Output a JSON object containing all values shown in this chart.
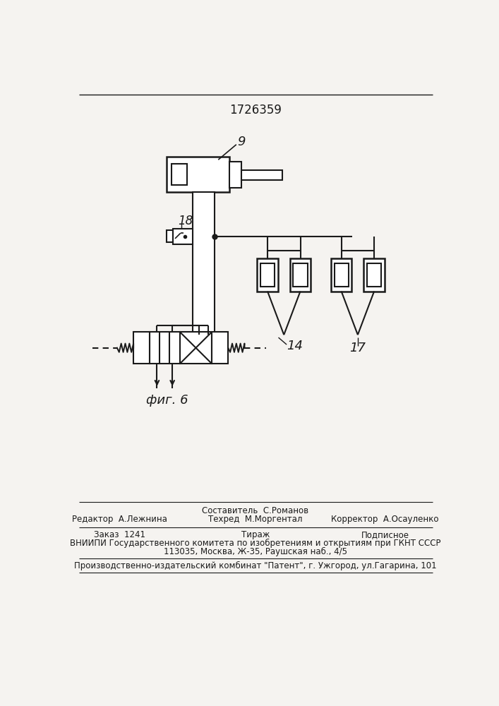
{
  "title": "1726359",
  "bg_color": "#f5f3f0",
  "line_color": "#1a1a1a",
  "label_9": "9",
  "label_18": "18",
  "label_14": "14",
  "label_17": "17",
  "fig_label": "фиг. 6",
  "footer_line1_center": "Составитель  С.Романов",
  "footer_line1_left": "Редактор  А.Лежнина",
  "footer_line1_right": "Корректор  А.Осауленко",
  "footer_line2_center": "Техред  М.Моргентал",
  "footer_line3_left": "Заказ  1241",
  "footer_line3_center": "Тираж",
  "footer_line3_right": "Подписное",
  "footer_line4": "ВНИИПИ Государственного комитета по изобретениям и открытиям при ГКНТ СССР",
  "footer_line5": "113035, Москва, Ж-35, Раушская наб., 4/5",
  "footer_line6": "Производственно-издательский комбинат \"Патент\", г. Ужгород, ул.Гагарина, 101"
}
